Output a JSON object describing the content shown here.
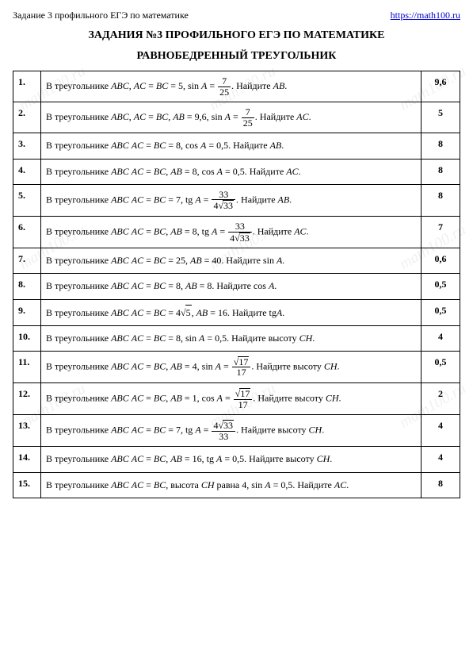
{
  "header": {
    "left": "Задание 3 профильного ЕГЭ по математике",
    "link_text": "https://math100.ru",
    "link_href": "https://math100.ru"
  },
  "title1": "ЗАДАНИЯ №3 ПРОФИЛЬНОГО ЕГЭ ПО МАТЕМАТИКЕ",
  "title2": "РАВНОБЕДРЕННЫЙ ТРЕУГОЛЬНИК",
  "watermark_text": "math100.ru",
  "rows": [
    {
      "n": "1.",
      "pre": "В треугольнике ",
      "abc": "ABC",
      "mid": ",  AC = BC = 5,  sin A = ",
      "frac_n": "7",
      "frac_d": "25",
      "post": ". Найдите ",
      "find": "AB",
      "tail": ".",
      "ans": "9,6"
    },
    {
      "n": "2.",
      "pre": "В треугольнике ",
      "abc": "ABC",
      "mid": ",  AC = BC,  AB = 9,6,  sin A = ",
      "frac_n": "7",
      "frac_d": "25",
      "post": ". Найдите ",
      "find": "AC",
      "tail": ".",
      "ans": "5"
    },
    {
      "n": "3.",
      "pre": "В треугольнике ",
      "abc": "ABC",
      "mid": "  AC = BC = 8,  cos A = 0,5. Найдите ",
      "find": "AB",
      "tail": ".",
      "ans": "8"
    },
    {
      "n": "4.",
      "pre": "В треугольнике ",
      "abc": "ABC",
      "mid": "  AC = BC,  AB = 8,  cos A = 0,5. Найдите ",
      "find": "AC",
      "tail": ".",
      "ans": "8"
    },
    {
      "n": "5.",
      "pre": "В треугольнике ",
      "abc": "ABC",
      "mid": "  AC = BC = 7,  tg A = ",
      "frac_n": "33",
      "frac_d_sqrt": "33",
      "frac_d_pre": "4",
      "post": ". Найдите ",
      "find": "AB",
      "tail": ".",
      "ans": "8"
    },
    {
      "n": "6.",
      "pre": "В треугольнике ",
      "abc": "ABC",
      "mid": "  AC = BC,  AB = 8,  tg A = ",
      "frac_n": "33",
      "frac_d_sqrt": "33",
      "frac_d_pre": "4",
      "post": ". Найдите ",
      "find": "AC",
      "tail": ".",
      "ans": "7"
    },
    {
      "n": "7.",
      "pre": "В треугольнике ",
      "abc": "ABC",
      "mid": "  AC = BC = 25,  AB = 40. Найдите sin A.",
      "ans": "0,6"
    },
    {
      "n": "8.",
      "pre": "В треугольнике ",
      "abc": "ABC",
      "mid": "  AC = BC = 8,  AB = 8. Найдите cos A.",
      "ans": "0,5"
    },
    {
      "n": "9.",
      "pre": "В треугольнике ",
      "abc": "ABC",
      "mid": "  AC = BC = 4",
      "sqrt_inline": "5",
      "mid2": ",  AB = 16. Найдите tgA.",
      "ans": "0,5"
    },
    {
      "n": "10.",
      "pre": "В треугольнике ",
      "abc": "ABC",
      "mid": "  AC = BC = 8,  sin A = 0,5. Найдите высоту ",
      "find": "CH",
      "tail": ".",
      "ans": "4"
    },
    {
      "n": "11.",
      "pre": "В треугольнике ",
      "abc": "ABC",
      "mid": "  AC = BC,  AB = 4,  sin A = ",
      "frac_n_sqrt": "17",
      "frac_d": "17",
      "post": ". Найдите высоту ",
      "find": "CH",
      "tail": ".",
      "ans": "0,5"
    },
    {
      "n": "12.",
      "pre": "В треугольнике ",
      "abc": "ABC",
      "mid": "  AC = BC,  AB = 1,  cos A = ",
      "frac_n_sqrt": "17",
      "frac_d": "17",
      "post": ". Найдите высоту ",
      "find": "CH",
      "tail": ".",
      "ans": "2"
    },
    {
      "n": "13.",
      "pre": "В треугольнике ",
      "abc": "ABC",
      "mid": "  AC = BC = 7,  tg A = ",
      "frac_n_pre": "4",
      "frac_n_sqrt": "33",
      "frac_d": "33",
      "post": ". Найдите высоту ",
      "find": "CH",
      "tail": ".",
      "ans": "4"
    },
    {
      "n": "14.",
      "pre": "В треугольнике ",
      "abc": "ABC",
      "mid": "  AC = BC,  AB = 16,  tg A = 0,5. Найдите высоту ",
      "find": "CH",
      "tail": ".",
      "ans": "4"
    },
    {
      "n": "15.",
      "pre": "В треугольнике ",
      "abc": "ABC",
      "mid": "  AC = BC,  высота CH равна 4,  sin A = 0,5. Найдите ",
      "find": "AC",
      "tail": ".",
      "ans": "8"
    }
  ]
}
